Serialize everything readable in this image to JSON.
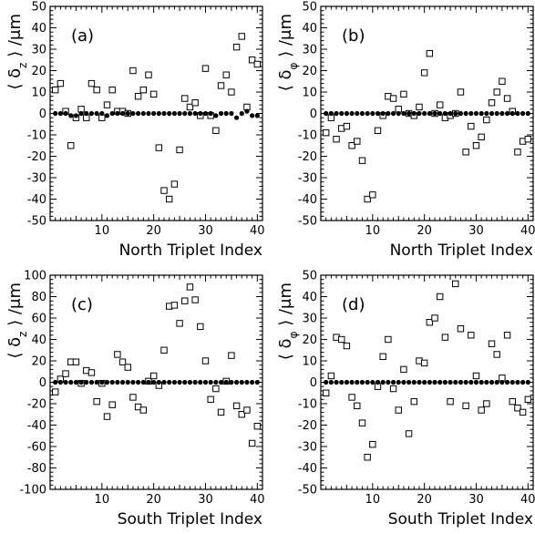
{
  "chart_data": [
    {
      "type": "scatter",
      "panel_label": "(a)",
      "xlabel": "North Triplet Index",
      "ylabel_html": "⟨ δ<tspan baseline-shift=\"sub\" font-size=\"12\">z</tspan> ⟩ /μm",
      "ylabel": "<δz> /μm",
      "xlim": [
        0,
        41
      ],
      "ylim": [
        -50,
        50
      ],
      "yticks": [
        -50,
        -40,
        -30,
        -20,
        -10,
        0,
        10,
        20,
        30,
        40,
        50
      ],
      "xticks": [
        10,
        20,
        30,
        40
      ],
      "grid": false,
      "series": [
        {
          "marker": "open-square",
          "x": [
            1,
            2,
            3,
            4,
            5,
            6,
            7,
            8,
            9,
            10,
            11,
            12,
            13,
            14,
            15,
            16,
            17,
            18,
            19,
            20,
            21,
            22,
            23,
            24,
            25,
            26,
            27,
            28,
            29,
            30,
            31,
            32,
            33,
            34,
            35,
            36,
            37,
            38,
            39,
            40
          ],
          "y": [
            11,
            14,
            1,
            -15,
            -2,
            2,
            -2,
            14,
            11,
            -2,
            4,
            11,
            1,
            1,
            0,
            20,
            8,
            11,
            18,
            9,
            -16,
            -36,
            -40,
            -33,
            -17,
            7,
            3,
            5,
            -1,
            21,
            -1,
            -8,
            13,
            18,
            10,
            31,
            36,
            3,
            25,
            23
          ]
        },
        {
          "marker": "filled-circle",
          "x": [
            1,
            2,
            3,
            4,
            5,
            6,
            7,
            8,
            9,
            10,
            11,
            12,
            13,
            14,
            15,
            16,
            17,
            18,
            19,
            20,
            21,
            22,
            23,
            24,
            25,
            26,
            27,
            28,
            29,
            30,
            31,
            32,
            33,
            34,
            35,
            36,
            37,
            38,
            39,
            40
          ],
          "y": [
            0,
            0,
            0,
            -1,
            -1,
            0,
            0,
            0,
            0,
            0,
            -1,
            0,
            0,
            0,
            0,
            0,
            0,
            0,
            0,
            0,
            0,
            0,
            0,
            0,
            0,
            0,
            0,
            0,
            0,
            0,
            0,
            -1,
            0,
            0,
            0,
            -2,
            0,
            1,
            -1,
            -1
          ]
        }
      ]
    },
    {
      "type": "scatter",
      "panel_label": "(b)",
      "xlabel": "North Triplet Index",
      "ylabel_html": "⟨ δ<tspan baseline-shift=\"sub\" font-size=\"12\">φ</tspan> ⟩ /μm",
      "ylabel": "<δφ> /μm",
      "xlim": [
        0,
        41
      ],
      "ylim": [
        -50,
        50
      ],
      "yticks": [
        -50,
        -40,
        -30,
        -20,
        -10,
        0,
        10,
        20,
        30,
        40,
        50
      ],
      "xticks": [
        10,
        20,
        30,
        40
      ],
      "grid": false,
      "series": [
        {
          "marker": "open-square",
          "x": [
            1,
            2,
            3,
            4,
            5,
            6,
            7,
            8,
            9,
            10,
            11,
            12,
            13,
            14,
            15,
            16,
            17,
            18,
            19,
            20,
            21,
            22,
            23,
            24,
            25,
            26,
            27,
            28,
            29,
            30,
            31,
            32,
            33,
            34,
            35,
            36,
            37,
            38,
            39,
            40
          ],
          "y": [
            -9,
            -2,
            -12,
            -7,
            -6,
            -15,
            -13,
            -22,
            -40,
            -38,
            -8,
            -1,
            8,
            7,
            2,
            9,
            0,
            -1,
            3,
            19,
            28,
            0,
            4,
            -2,
            -1,
            0,
            10,
            -18,
            -6,
            -15,
            -11,
            -3,
            5,
            10,
            15,
            7,
            1,
            -18,
            -13,
            -12
          ]
        },
        {
          "marker": "filled-circle",
          "x": [
            1,
            2,
            3,
            4,
            5,
            6,
            7,
            8,
            9,
            10,
            11,
            12,
            13,
            14,
            15,
            16,
            17,
            18,
            19,
            20,
            21,
            22,
            23,
            24,
            25,
            26,
            27,
            28,
            29,
            30,
            31,
            32,
            33,
            34,
            35,
            36,
            37,
            38,
            39,
            40
          ],
          "y": [
            0,
            0,
            0,
            0,
            0,
            0,
            0,
            0,
            0,
            0,
            0,
            0,
            0,
            0,
            0,
            0,
            0,
            0,
            0,
            0,
            0,
            0,
            0,
            0,
            0,
            0,
            0,
            0,
            0,
            0,
            0,
            0,
            0,
            0,
            0,
            0,
            0,
            0,
            0,
            0
          ]
        }
      ]
    },
    {
      "type": "scatter",
      "panel_label": "(c)",
      "xlabel": "South Triplet Index",
      "ylabel_html": "⟨ δ<tspan baseline-shift=\"sub\" font-size=\"12\">z</tspan> ⟩ /μm",
      "ylabel": "<δz> /μm",
      "xlim": [
        0,
        41
      ],
      "ylim": [
        -100,
        100
      ],
      "yticks": [
        -100,
        -80,
        -60,
        -40,
        -20,
        0,
        20,
        40,
        60,
        80,
        100
      ],
      "xticks": [
        10,
        20,
        30,
        40
      ],
      "grid": false,
      "series": [
        {
          "marker": "open-square",
          "x": [
            1,
            2,
            3,
            4,
            5,
            6,
            7,
            8,
            9,
            10,
            11,
            12,
            13,
            14,
            15,
            16,
            17,
            18,
            19,
            20,
            21,
            22,
            23,
            24,
            25,
            26,
            27,
            28,
            29,
            30,
            31,
            32,
            33,
            34,
            35,
            36,
            37,
            38,
            39,
            40
          ],
          "y": [
            -9,
            3,
            8,
            19,
            19,
            -1,
            11,
            9,
            -18,
            -1,
            -32,
            -21,
            26,
            19,
            14,
            -14,
            -23,
            -26,
            1,
            6,
            -3,
            30,
            71,
            72,
            55,
            76,
            89,
            77,
            52,
            20,
            -16,
            -6,
            -28,
            1,
            25,
            -22,
            -30,
            -26,
            -57,
            -41
          ]
        },
        {
          "marker": "filled-circle",
          "x": [
            1,
            2,
            3,
            4,
            5,
            6,
            7,
            8,
            9,
            10,
            11,
            12,
            13,
            14,
            15,
            16,
            17,
            18,
            19,
            20,
            21,
            22,
            23,
            24,
            25,
            26,
            27,
            28,
            29,
            30,
            31,
            32,
            33,
            34,
            35,
            36,
            37,
            38,
            39,
            40
          ],
          "y": [
            0,
            0,
            0,
            0,
            0,
            0,
            0,
            0,
            0,
            0,
            0,
            0,
            0,
            0,
            0,
            0,
            0,
            0,
            0,
            0,
            0,
            0,
            0,
            0,
            0,
            0,
            0,
            0,
            0,
            0,
            0,
            0,
            0,
            0,
            0,
            0,
            0,
            0,
            0,
            0
          ]
        }
      ]
    },
    {
      "type": "scatter",
      "panel_label": "(d)",
      "xlabel": "South Triplet Index",
      "ylabel_html": "⟨ δ<tspan baseline-shift=\"sub\" font-size=\"12\">φ</tspan> ⟩ /μm",
      "ylabel": "<δφ> /μm",
      "xlim": [
        0,
        41
      ],
      "ylim": [
        -50,
        50
      ],
      "yticks": [
        -50,
        -40,
        -30,
        -20,
        -10,
        0,
        10,
        20,
        30,
        40,
        50
      ],
      "xticks": [
        10,
        20,
        30,
        40
      ],
      "grid": false,
      "series": [
        {
          "marker": "open-square",
          "x": [
            1,
            2,
            3,
            4,
            5,
            6,
            7,
            8,
            9,
            10,
            11,
            12,
            13,
            14,
            15,
            16,
            17,
            18,
            19,
            20,
            21,
            22,
            23,
            24,
            25,
            26,
            27,
            28,
            29,
            30,
            31,
            32,
            33,
            34,
            35,
            36,
            37,
            38,
            39,
            40
          ],
          "y": [
            -5,
            3,
            21,
            20,
            17,
            -7,
            -11,
            -19,
            -35,
            -29,
            -2,
            12,
            20,
            -3,
            -13,
            6,
            -24,
            -9,
            10,
            9,
            28,
            30,
            40,
            21,
            -9,
            46,
            25,
            -11,
            22,
            3,
            -13,
            -10,
            18,
            13,
            2,
            22,
            -9,
            -12,
            -14,
            -8
          ]
        },
        {
          "marker": "filled-circle",
          "x": [
            1,
            2,
            3,
            4,
            5,
            6,
            7,
            8,
            9,
            10,
            11,
            12,
            13,
            14,
            15,
            16,
            17,
            18,
            19,
            20,
            21,
            22,
            23,
            24,
            25,
            26,
            27,
            28,
            29,
            30,
            31,
            32,
            33,
            34,
            35,
            36,
            37,
            38,
            39,
            40
          ],
          "y": [
            0,
            0,
            0,
            0,
            0,
            0,
            0,
            0,
            0,
            0,
            0,
            0,
            0,
            0,
            0,
            0,
            0,
            0,
            0,
            0,
            0,
            0,
            0,
            0,
            0,
            0,
            0,
            0,
            0,
            0,
            0,
            0,
            0,
            0,
            0,
            0,
            0,
            0,
            0,
            0
          ]
        }
      ]
    }
  ]
}
